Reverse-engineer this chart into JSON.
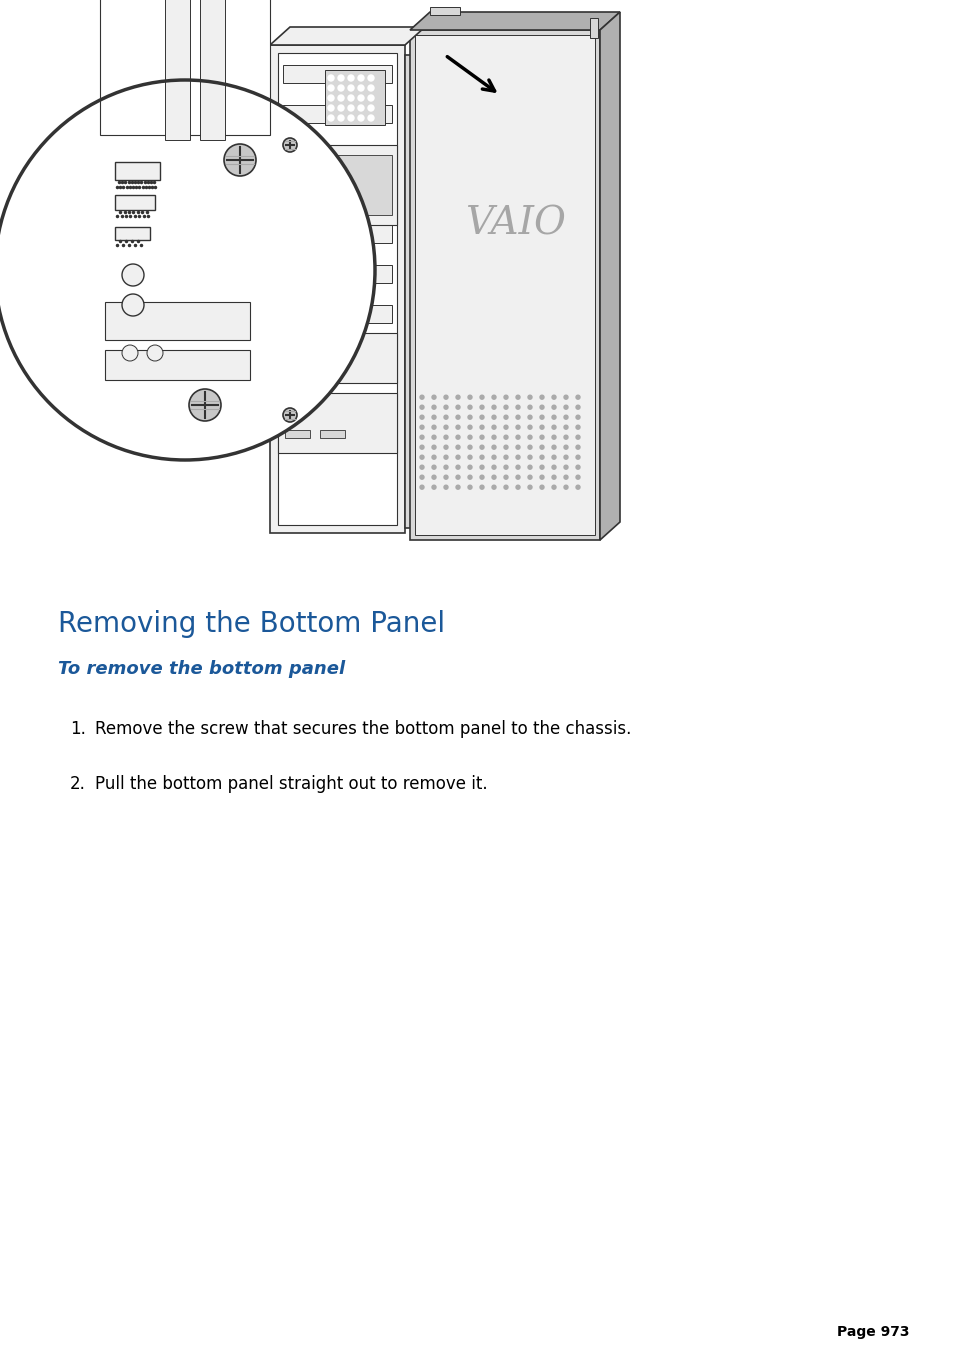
{
  "title": "Removing the Bottom Panel",
  "subtitle": "To remove the bottom panel",
  "steps": [
    "Remove the screw that secures the bottom panel to the chassis.",
    "Pull the bottom panel straight out to remove it."
  ],
  "page_number": "Page 973",
  "title_color": "#1b5899",
  "subtitle_color": "#1b5899",
  "body_color": "#000000",
  "page_num_color": "#000000",
  "bg_color": "#ffffff",
  "line_color": "#333333",
  "fill_light": "#f0f0f0",
  "fill_mid": "#d8d8d8",
  "fill_dark": "#b0b0b0"
}
